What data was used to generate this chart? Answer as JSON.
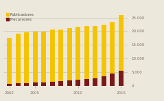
{
  "years": [
    2002,
    2003,
    2004,
    2005,
    2006,
    2007,
    2008,
    2009,
    2010,
    2011,
    2012,
    2013,
    2014,
    2015
  ],
  "publicadores": [
    17500,
    19000,
    19500,
    19800,
    19900,
    20500,
    20700,
    21200,
    21500,
    21800,
    22000,
    22500,
    23500,
    26000
  ],
  "precursores": [
    700,
    900,
    1000,
    1200,
    1300,
    1500,
    1700,
    2000,
    2200,
    2500,
    2800,
    3500,
    4500,
    5500
  ],
  "color_pub": "#F5C400",
  "color_pre": "#7B1818",
  "background": "#EDE8DC",
  "grid_color": "#BEBAB0",
  "ylim": [
    0,
    27000
  ],
  "yticks": [
    0,
    5000,
    10000,
    15000,
    20000,
    25000
  ],
  "ytick_labels": [
    "0",
    "5.000",
    "10.000",
    "15.000",
    "20.000",
    "25.000"
  ],
  "xtick_years": [
    2002,
    2005,
    2010,
    2015
  ],
  "legend_publicadores": "Publicadores",
  "legend_precursores": "Precursores",
  "bar_width": 0.55
}
